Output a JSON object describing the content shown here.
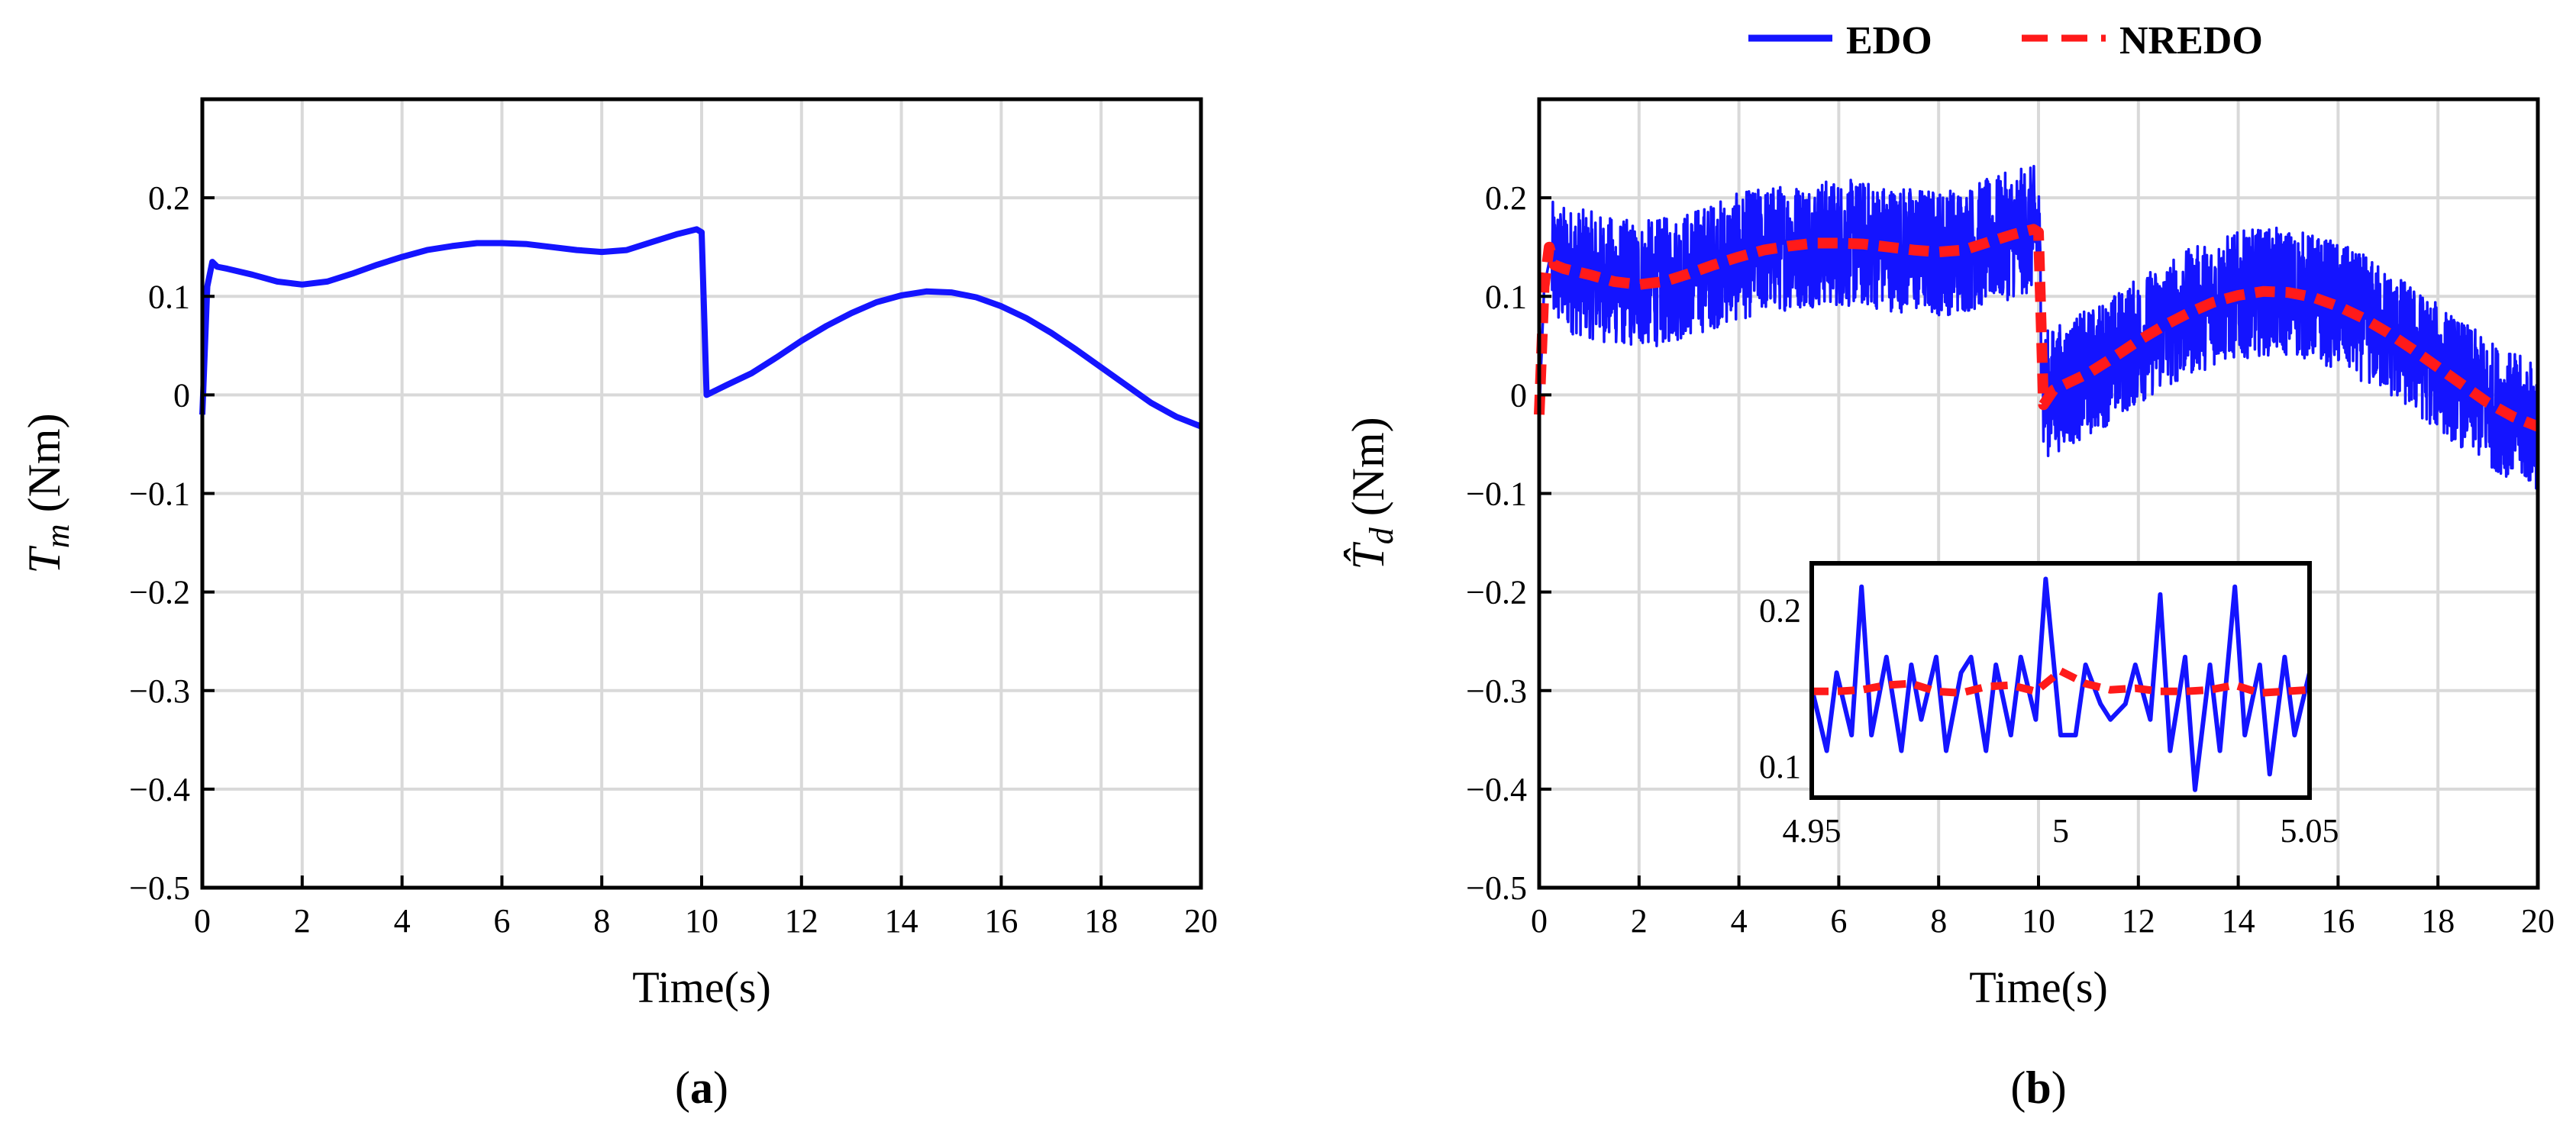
{
  "legend": {
    "entries": [
      {
        "label": "EDO",
        "color": "#1414ff",
        "style": "solid"
      },
      {
        "label": "NREDO",
        "color": "#ff1a1a",
        "style": "dashed"
      }
    ]
  },
  "colors": {
    "edo": "#1414ff",
    "nredo": "#ff1a1a",
    "grid": "#d9d9d9"
  },
  "chart_data": [
    {
      "type": "line",
      "panel_caption": {
        "open": "(",
        "letter": "a",
        "close": ")"
      },
      "xlabel": "Time(s)",
      "ylabel": {
        "symbol": "T",
        "subscript": "m",
        "unit": " (Nm)"
      },
      "xlim": [
        0,
        20
      ],
      "ylim": [
        -0.5,
        0.3
      ],
      "xticks": [
        0,
        2,
        4,
        6,
        8,
        10,
        12,
        14,
        16,
        18,
        20
      ],
      "xtick_labels": [
        "0",
        "2",
        "4",
        "6",
        "8",
        "10",
        "12",
        "14",
        "16",
        "18",
        "20"
      ],
      "yticks": [
        -0.5,
        -0.4,
        -0.3,
        -0.2,
        -0.1,
        0,
        0.1,
        0.2
      ],
      "ytick_labels": [
        "−0.5",
        "−0.4",
        "−0.3",
        "−0.2",
        "−0.1",
        "0",
        "0.1",
        "0.2"
      ],
      "grid": true,
      "series": [
        {
          "name": "EDO",
          "color": "#1414ff",
          "x": [
            0,
            0.1,
            0.2,
            0.3,
            0.5,
            1,
            1.5,
            2,
            2.5,
            3,
            3.5,
            4,
            4.5,
            5,
            5.5,
            6,
            6.5,
            7,
            7.5,
            8,
            8.5,
            9,
            9.5,
            9.9,
            10.0,
            10.1,
            10.3,
            10.5,
            11,
            11.5,
            12,
            12.5,
            13,
            13.5,
            14,
            14.5,
            15,
            15.5,
            16,
            16.5,
            17,
            17.5,
            18,
            18.5,
            19,
            19.5,
            19.9,
            20
          ],
          "y": [
            -0.02,
            0.11,
            0.135,
            0.13,
            0.128,
            0.122,
            0.115,
            0.112,
            0.115,
            0.123,
            0.132,
            0.14,
            0.147,
            0.151,
            0.154,
            0.154,
            0.153,
            0.15,
            0.147,
            0.145,
            0.147,
            0.155,
            0.163,
            0.168,
            0.165,
            0.0,
            0.005,
            0.01,
            0.022,
            0.038,
            0.055,
            0.07,
            0.083,
            0.094,
            0.101,
            0.105,
            0.104,
            0.099,
            0.09,
            0.078,
            0.063,
            0.046,
            0.028,
            0.01,
            -0.008,
            -0.022,
            -0.03,
            -0.032
          ]
        }
      ]
    },
    {
      "type": "line",
      "panel_caption": {
        "open": "(",
        "letter": "b",
        "close": ")"
      },
      "xlabel": "Time(s)",
      "ylabel": {
        "symbol": "T̂",
        "subscript": "d",
        "unit": " (Nm)"
      },
      "xlim": [
        0,
        20
      ],
      "ylim": [
        -0.5,
        0.3
      ],
      "xticks": [
        0,
        2,
        4,
        6,
        8,
        10,
        12,
        14,
        16,
        18,
        20
      ],
      "xtick_labels": [
        "0",
        "2",
        "4",
        "6",
        "8",
        "10",
        "12",
        "14",
        "16",
        "18",
        "20"
      ],
      "yticks": [
        -0.5,
        -0.4,
        -0.3,
        -0.2,
        -0.1,
        0,
        0.1,
        0.2
      ],
      "ytick_labels": [
        "−0.5",
        "−0.4",
        "−0.3",
        "−0.2",
        "−0.1",
        "0",
        "0.1",
        "0.2"
      ],
      "grid": true,
      "series": [
        {
          "name": "EDO",
          "color": "#1414ff",
          "noise_band": 0.065,
          "x": [
            0,
            0.1,
            0.2,
            0.3,
            0.5,
            1,
            1.5,
            2,
            2.5,
            3,
            3.5,
            4,
            4.5,
            5,
            5.5,
            6,
            6.5,
            7,
            7.5,
            8,
            8.5,
            9,
            9.5,
            9.9,
            10.0,
            10.1,
            10.3,
            10.5,
            11,
            11.5,
            12,
            12.5,
            13,
            13.5,
            14,
            14.5,
            15,
            15.5,
            16,
            16.5,
            17,
            17.5,
            18,
            18.5,
            19,
            19.5,
            19.9,
            20
          ],
          "y": [
            -0.02,
            0.11,
            0.135,
            0.13,
            0.128,
            0.122,
            0.115,
            0.112,
            0.115,
            0.123,
            0.132,
            0.14,
            0.147,
            0.151,
            0.154,
            0.154,
            0.153,
            0.15,
            0.147,
            0.145,
            0.147,
            0.155,
            0.163,
            0.168,
            0.165,
            0.0,
            0.005,
            0.01,
            0.022,
            0.038,
            0.055,
            0.07,
            0.083,
            0.094,
            0.101,
            0.105,
            0.104,
            0.099,
            0.09,
            0.078,
            0.063,
            0.046,
            0.028,
            0.01,
            -0.008,
            -0.022,
            -0.03,
            -0.032
          ]
        },
        {
          "name": "NREDO",
          "color": "#ff1a1a",
          "x": [
            0,
            0.1,
            0.2,
            0.3,
            0.5,
            1,
            1.5,
            2,
            2.5,
            3,
            3.5,
            4,
            4.5,
            5,
            5.5,
            6,
            6.5,
            7,
            7.5,
            8,
            8.5,
            9,
            9.5,
            9.9,
            10.0,
            10.1,
            10.3,
            10.5,
            11,
            11.5,
            12,
            12.5,
            13,
            13.5,
            14,
            14.5,
            15,
            15.5,
            16,
            16.5,
            17,
            17.5,
            18,
            18.5,
            19,
            19.5,
            19.9,
            20
          ],
          "y": [
            -0.02,
            0.11,
            0.15,
            0.132,
            0.128,
            0.122,
            0.115,
            0.112,
            0.115,
            0.123,
            0.132,
            0.14,
            0.147,
            0.151,
            0.154,
            0.154,
            0.153,
            0.15,
            0.147,
            0.145,
            0.147,
            0.155,
            0.163,
            0.168,
            0.165,
            -0.01,
            0.005,
            0.01,
            0.022,
            0.038,
            0.055,
            0.07,
            0.083,
            0.094,
            0.101,
            0.105,
            0.104,
            0.099,
            0.09,
            0.078,
            0.063,
            0.046,
            0.028,
            0.01,
            -0.008,
            -0.022,
            -0.03,
            -0.032
          ]
        }
      ],
      "inset": {
        "xlim": [
          4.95,
          5.05
        ],
        "ylim": [
          0.08,
          0.23
        ],
        "xticks": [
          4.95,
          5,
          5.05
        ],
        "xtick_labels": [
          "4.95",
          "5",
          "5.05"
        ],
        "yticks": [
          0.1,
          0.2
        ],
        "ytick_labels": [
          "0.1",
          "0.2"
        ],
        "series": [
          {
            "name": "EDO",
            "color": "#1414ff",
            "x": [
              4.95,
              4.953,
              4.955,
              4.958,
              4.96,
              4.962,
              4.965,
              4.968,
              4.97,
              4.972,
              4.975,
              4.977,
              4.98,
              4.982,
              4.985,
              4.987,
              4.99,
              4.992,
              4.995,
              4.997,
              5.0,
              5.003,
              5.005,
              5.008,
              5.01,
              5.013,
              5.015,
              5.018,
              5.02,
              5.022,
              5.025,
              5.027,
              5.03,
              5.032,
              5.035,
              5.037,
              5.04,
              5.042,
              5.045,
              5.047,
              5.05
            ],
            "y": [
              0.15,
              0.11,
              0.16,
              0.12,
              0.215,
              0.12,
              0.17,
              0.11,
              0.165,
              0.13,
              0.17,
              0.11,
              0.16,
              0.17,
              0.11,
              0.165,
              0.12,
              0.17,
              0.13,
              0.22,
              0.12,
              0.12,
              0.165,
              0.14,
              0.13,
              0.14,
              0.165,
              0.13,
              0.21,
              0.11,
              0.17,
              0.085,
              0.165,
              0.11,
              0.215,
              0.12,
              0.165,
              0.095,
              0.17,
              0.12,
              0.16
            ]
          },
          {
            "name": "NREDO",
            "color": "#ff1a1a",
            "x": [
              4.95,
              4.955,
              4.96,
              4.965,
              4.97,
              4.975,
              4.98,
              4.985,
              4.99,
              4.995,
              5.0,
              5.005,
              5.01,
              5.015,
              5.02,
              5.025,
              5.03,
              5.035,
              5.04,
              5.045,
              5.05
            ],
            "y": [
              0.148,
              0.148,
              0.149,
              0.152,
              0.153,
              0.148,
              0.147,
              0.151,
              0.152,
              0.148,
              0.161,
              0.153,
              0.149,
              0.15,
              0.148,
              0.148,
              0.149,
              0.152,
              0.147,
              0.148,
              0.149
            ]
          }
        ]
      }
    }
  ]
}
